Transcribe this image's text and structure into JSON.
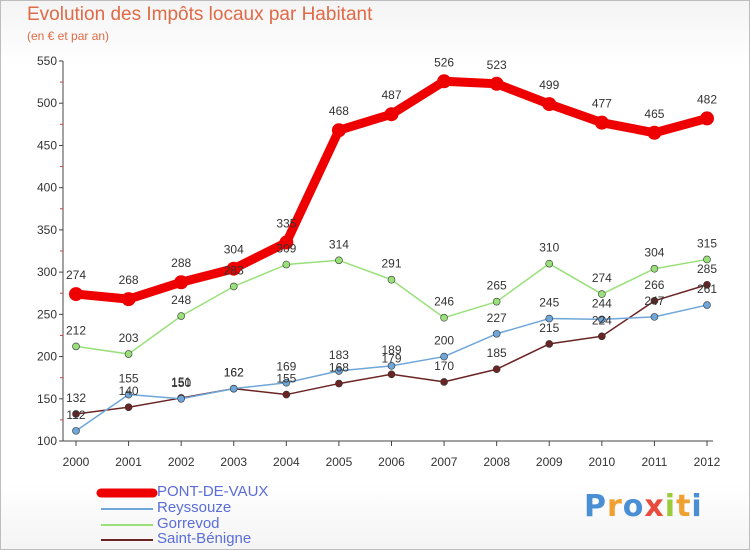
{
  "title": "Evolution des Impôts locaux par Habitant",
  "subtitle": "(en € et par an)",
  "logo": {
    "text": "Proxiti",
    "letters": [
      "P",
      "r",
      "o",
      "x",
      "i",
      "t",
      "i"
    ],
    "colors": [
      "#4a8fd4",
      "#f0a030",
      "#4a8fd4",
      "#e84c3d",
      "#9ccc3c",
      "#f0a030",
      "#4a8fd4"
    ]
  },
  "chart_data": {
    "type": "line",
    "categories": [
      "2000",
      "2001",
      "2002",
      "2003",
      "2004",
      "2005",
      "2006",
      "2007",
      "2008",
      "2009",
      "2010",
      "2011",
      "2012"
    ],
    "ylim": [
      100,
      550
    ],
    "yticks": [
      "100",
      "150",
      "200",
      "250",
      "300",
      "350",
      "400",
      "450",
      "500",
      "550"
    ],
    "grid": false,
    "legend_position": "bottom-left",
    "series": [
      {
        "name": "PONT-DE-VAUX",
        "color": "#ee0000",
        "values": [
          274,
          268,
          288,
          304,
          335,
          468,
          487,
          526,
          523,
          499,
          477,
          465,
          482
        ],
        "labels": [
          "274",
          "268",
          "288",
          "304",
          "335",
          "468",
          "487",
          "526",
          "523",
          "499",
          "477",
          "465",
          "482"
        ]
      },
      {
        "name": "Reyssouze",
        "color": "#6fa6d9",
        "values": [
          112,
          155,
          150,
          162,
          169,
          183,
          189,
          200,
          227,
          245,
          244,
          247,
          261
        ],
        "labels": [
          "112",
          "155",
          "150",
          "162",
          "169",
          "183",
          "189",
          "200",
          "227",
          "245",
          "244",
          "247",
          "261"
        ]
      },
      {
        "name": "Gorrevod",
        "color": "#99e07a",
        "values": [
          212,
          203,
          248,
          283,
          309,
          314,
          291,
          246,
          265,
          310,
          274,
          304,
          315
        ],
        "labels": [
          "212",
          "203",
          "248",
          "283",
          "309",
          "314",
          "291",
          "246",
          "265",
          "310",
          "274",
          "304",
          "315"
        ]
      },
      {
        "name": "Saint-Bénigne",
        "color": "#6b2424",
        "values": [
          132,
          140,
          151,
          162,
          155,
          168,
          179,
          170,
          185,
          215,
          224,
          266,
          285
        ],
        "labels": [
          "132",
          "140",
          "151",
          "162",
          "155",
          "168",
          "179",
          "170",
          "185",
          "215",
          "224",
          "266",
          "285"
        ]
      }
    ]
  }
}
